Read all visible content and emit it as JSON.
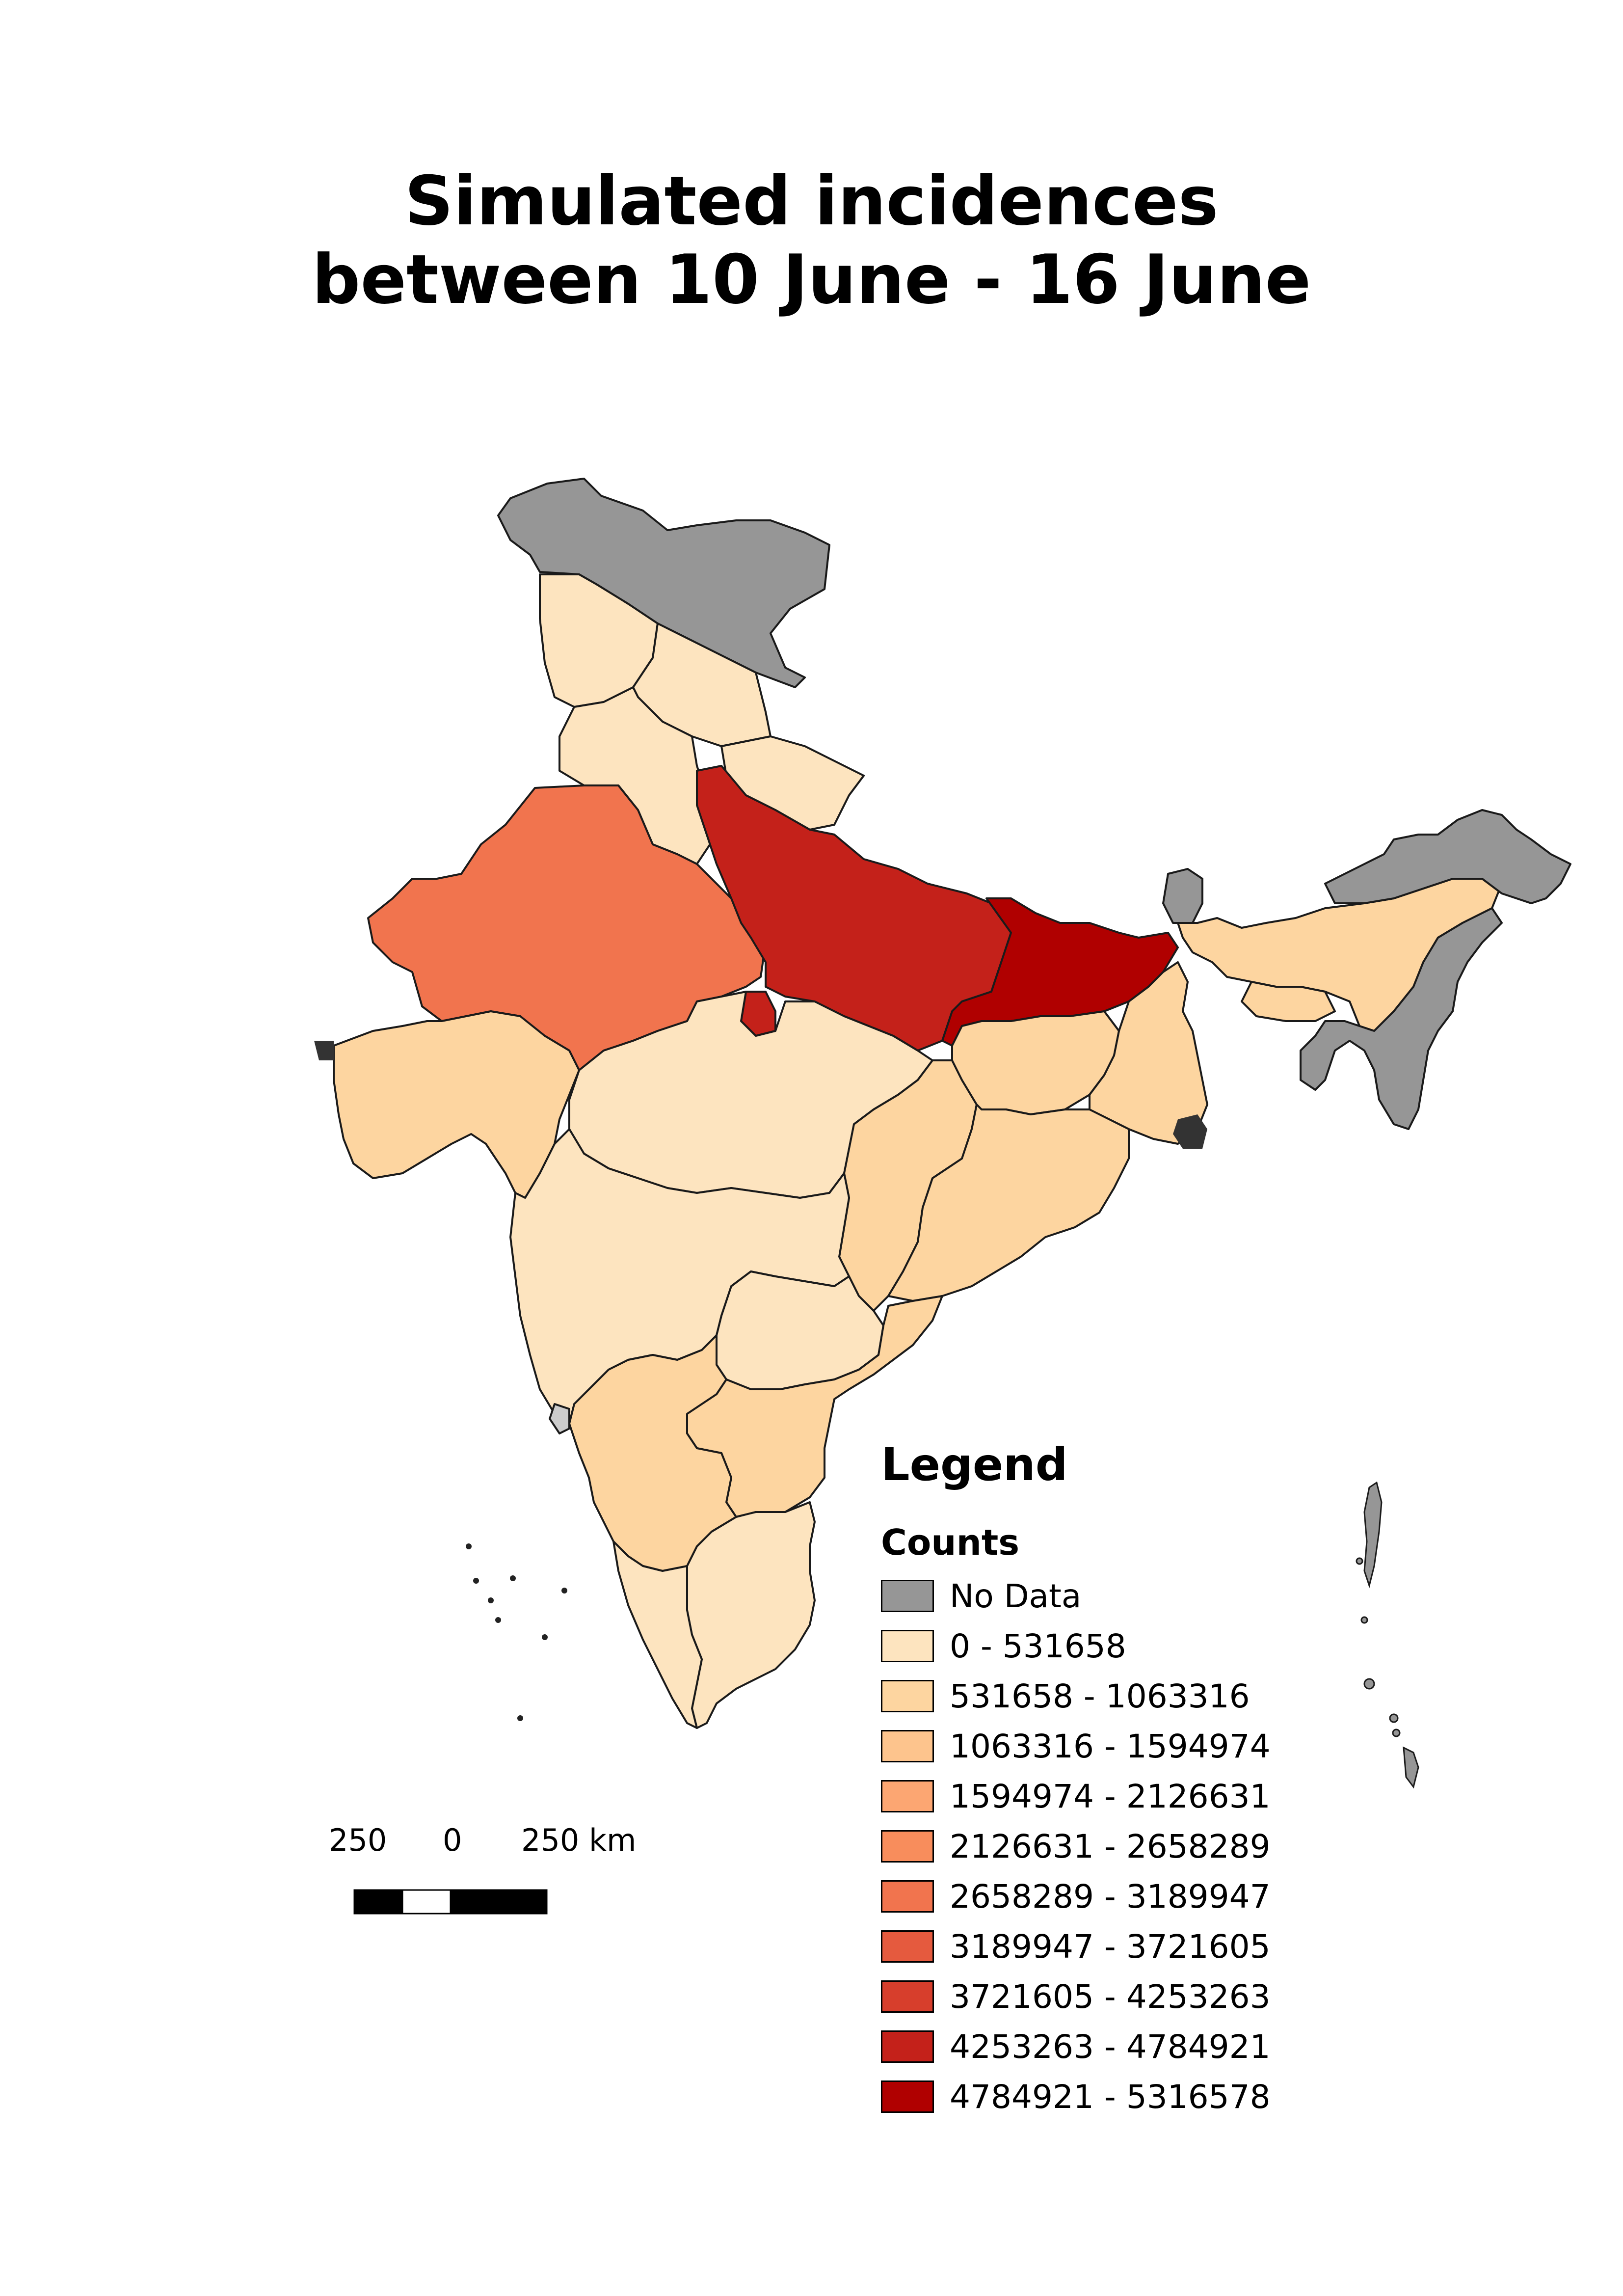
{
  "title": {
    "line1": "Simulated incidences",
    "line2": "between 10 June - 16 June"
  },
  "legend": {
    "heading": "Legend",
    "subheading": "Counts",
    "items": [
      {
        "label": "No Data",
        "color": "#969696"
      },
      {
        "label": "0 - 531658",
        "color": "#fde4bf"
      },
      {
        "label": "531658 - 1063316",
        "color": "#fdd5a0"
      },
      {
        "label": "1063316 - 1594974",
        "color": "#fdc48d"
      },
      {
        "label": "1594974 - 2126631",
        "color": "#fca672"
      },
      {
        "label": "2126631 - 2658289",
        "color": "#f88d5c"
      },
      {
        "label": "2658289 - 3189947",
        "color": "#f1744e"
      },
      {
        "label": "3189947 - 3721605",
        "color": "#e55a3e"
      },
      {
        "label": "3721605 - 4253263",
        "color": "#d73e2c"
      },
      {
        "label": "4253263 - 4784921",
        "color": "#c4211a"
      },
      {
        "label": "4784921 - 5316578",
        "color": "#b00000"
      }
    ]
  },
  "scale_bar": {
    "labels": [
      "250",
      "0",
      "250 km"
    ]
  },
  "regions": [
    {
      "name": "jammu-kashmir",
      "class": "No Data"
    },
    {
      "name": "himachal-punjab-north",
      "class": "0 - 531658"
    },
    {
      "name": "uttarakhand",
      "class": "0 - 531658"
    },
    {
      "name": "haryana-delhi",
      "class": "0 - 531658"
    },
    {
      "name": "rajasthan",
      "class": "2658289 - 3189947"
    },
    {
      "name": "uttar-pradesh",
      "class": "4253263 - 4784921"
    },
    {
      "name": "bihar",
      "class": "4784921 - 5316578"
    },
    {
      "name": "gujarat",
      "class": "531658 - 1063316"
    },
    {
      "name": "madhya-pradesh",
      "class": "0 - 531658"
    },
    {
      "name": "maharashtra",
      "class": "0 - 531658"
    },
    {
      "name": "chhattisgarh",
      "class": "531658 - 1063316"
    },
    {
      "name": "jharkhand",
      "class": "531658 - 1063316"
    },
    {
      "name": "west-bengal",
      "class": "531658 - 1063316"
    },
    {
      "name": "odisha",
      "class": "531658 - 1063316"
    },
    {
      "name": "telangana",
      "class": "0 - 531658"
    },
    {
      "name": "andhra-pradesh",
      "class": "531658 - 1063316"
    },
    {
      "name": "karnataka",
      "class": "531658 - 1063316"
    },
    {
      "name": "tamil-nadu",
      "class": "0 - 531658"
    },
    {
      "name": "kerala",
      "class": "0 - 531658"
    },
    {
      "name": "assam",
      "class": "531658 - 1063316"
    },
    {
      "name": "northeast-other",
      "class": "No Data"
    }
  ]
}
